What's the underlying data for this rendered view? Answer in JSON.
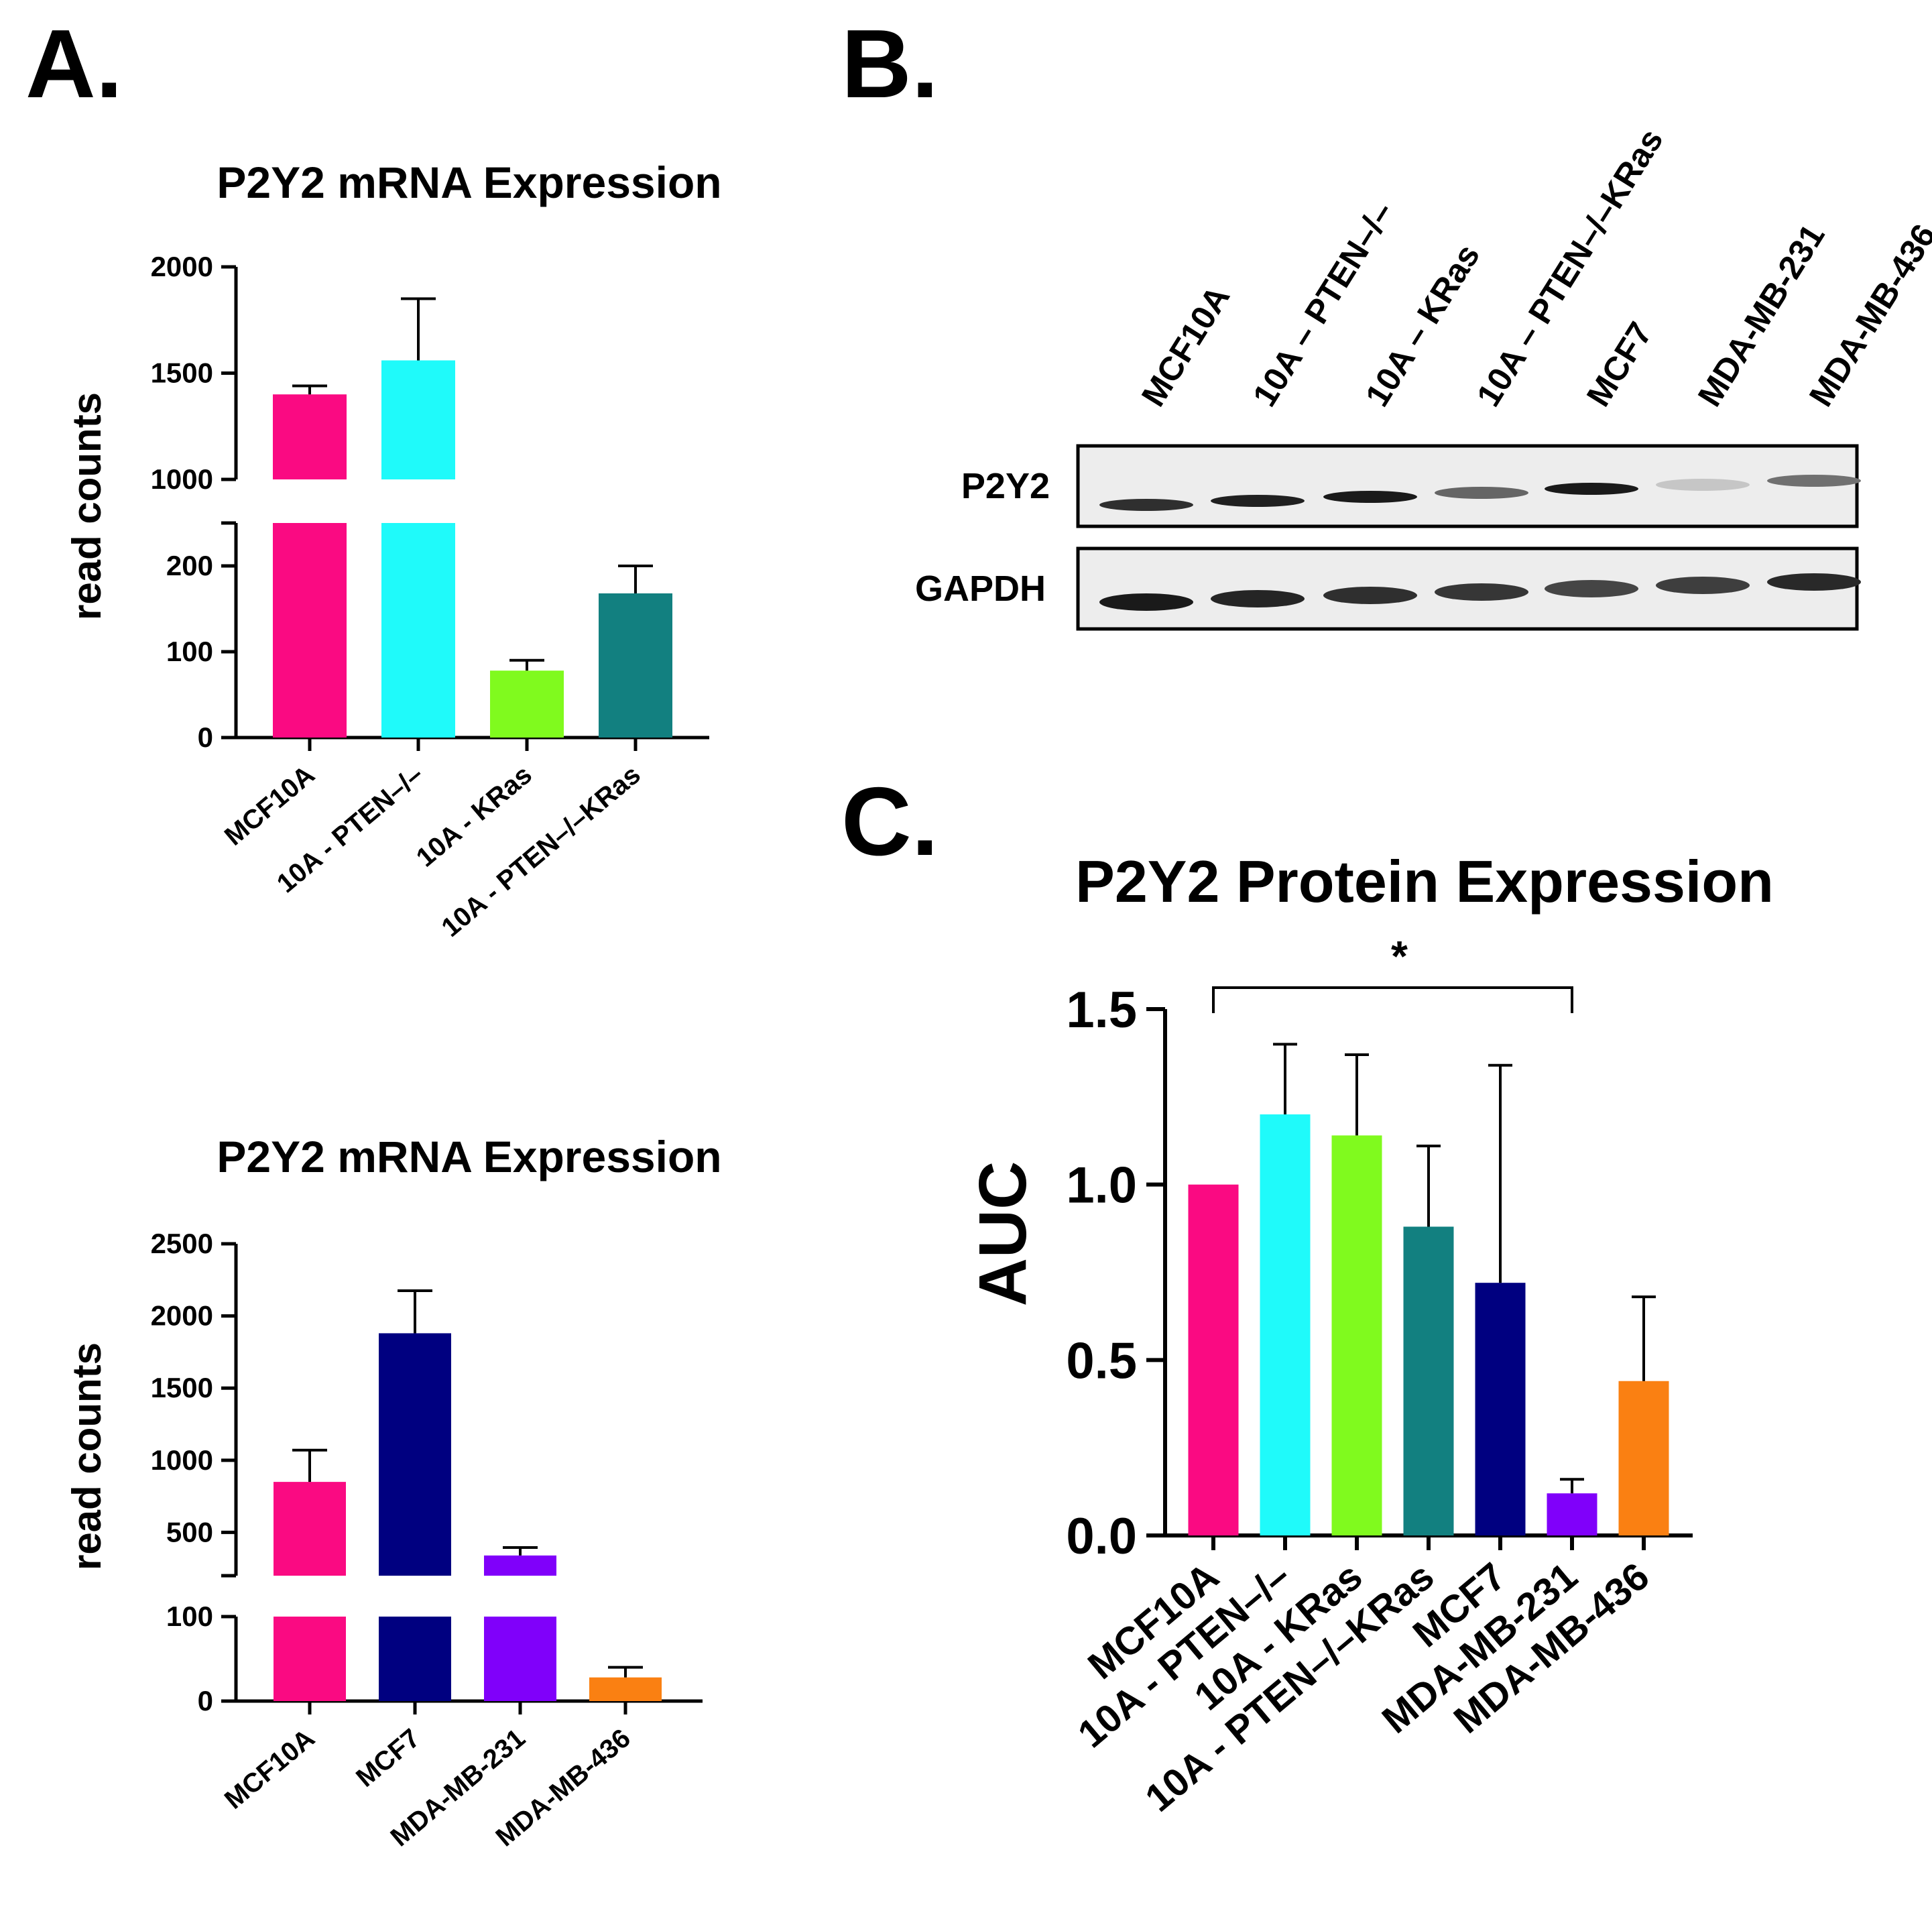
{
  "panels": {
    "a": "A.",
    "b": "B.",
    "c": "C."
  },
  "blot": {
    "lanes": [
      "MCF10A",
      "10A – PTEN–/–",
      "10A – KRas",
      "10A – PTEN–/–KRas",
      "MCF7",
      "MDA-MB-231",
      "MDA-MB-436"
    ],
    "rows": [
      {
        "label": "P2Y2",
        "intensity": [
          0.85,
          0.92,
          0.95,
          0.6,
          0.95,
          0.15,
          0.55
        ]
      },
      {
        "label": "GAPDH",
        "intensity": [
          0.95,
          0.9,
          0.85,
          0.82,
          0.75,
          0.78,
          0.88
        ]
      }
    ]
  },
  "chart_data": [
    {
      "id": "a1",
      "type": "bar",
      "title": "P2Y2 mRNA Expression",
      "ylabel": "read counts",
      "xlabel": "",
      "broken_axis": true,
      "lower_ylim": [
        0,
        250
      ],
      "upper_ylim": [
        1000,
        2000
      ],
      "lower_ticks": [
        0,
        100,
        200
      ],
      "upper_ticks": [
        1000,
        1500,
        2000
      ],
      "categories": [
        "MCF10A",
        "10A - PTEN–/–",
        "10A - KRas",
        "10A - PTEN–/–KRas"
      ],
      "values": [
        1400,
        1560,
        78,
        168
      ],
      "errors": [
        40,
        290,
        12,
        32
      ],
      "colors": [
        "#fa0a82",
        "#1ffafa",
        "#80fa1e",
        "#128080"
      ]
    },
    {
      "id": "a2",
      "type": "bar",
      "title": "P2Y2 mRNA Expression",
      "ylabel": "read counts",
      "xlabel": "",
      "broken_axis": true,
      "lower_ylim": [
        0,
        100
      ],
      "upper_ylim": [
        200,
        2500
      ],
      "lower_ticks": [
        0,
        100
      ],
      "upper_ticks": [
        500,
        1000,
        1500,
        2000,
        2500
      ],
      "categories": [
        "MCF10A",
        "MCF7",
        "MDA-MB-231",
        "MDA-MB-436"
      ],
      "values": [
        850,
        1880,
        340,
        28
      ],
      "errors": [
        220,
        295,
        55,
        12
      ],
      "colors": [
        "#fa0a82",
        "#000080",
        "#8000fa",
        "#fa8012"
      ]
    },
    {
      "id": "c",
      "type": "bar",
      "title": "P2Y2 Protein Expression",
      "ylabel": "AUC",
      "xlabel": "",
      "ylim": [
        0,
        1.5
      ],
      "ticks": [
        "0.0",
        "0.5",
        "1.0",
        "1.5"
      ],
      "categories": [
        "MCF10A",
        "10A - PTEN–/–",
        "10A - KRas",
        "10A - PTEN–/–KRas",
        "MCF7",
        "MDA-MB-231",
        "MDA-MB-436"
      ],
      "values": [
        1.0,
        1.2,
        1.14,
        0.88,
        0.72,
        0.12,
        0.44
      ],
      "errors": [
        0,
        0.2,
        0.23,
        0.23,
        0.62,
        0.04,
        0.24
      ],
      "colors": [
        "#fa0a82",
        "#1ffafa",
        "#80fa1e",
        "#128080",
        "#000080",
        "#8000fa",
        "#fa8012"
      ],
      "significance": {
        "from": 0,
        "to": 5,
        "label": "*"
      }
    }
  ]
}
